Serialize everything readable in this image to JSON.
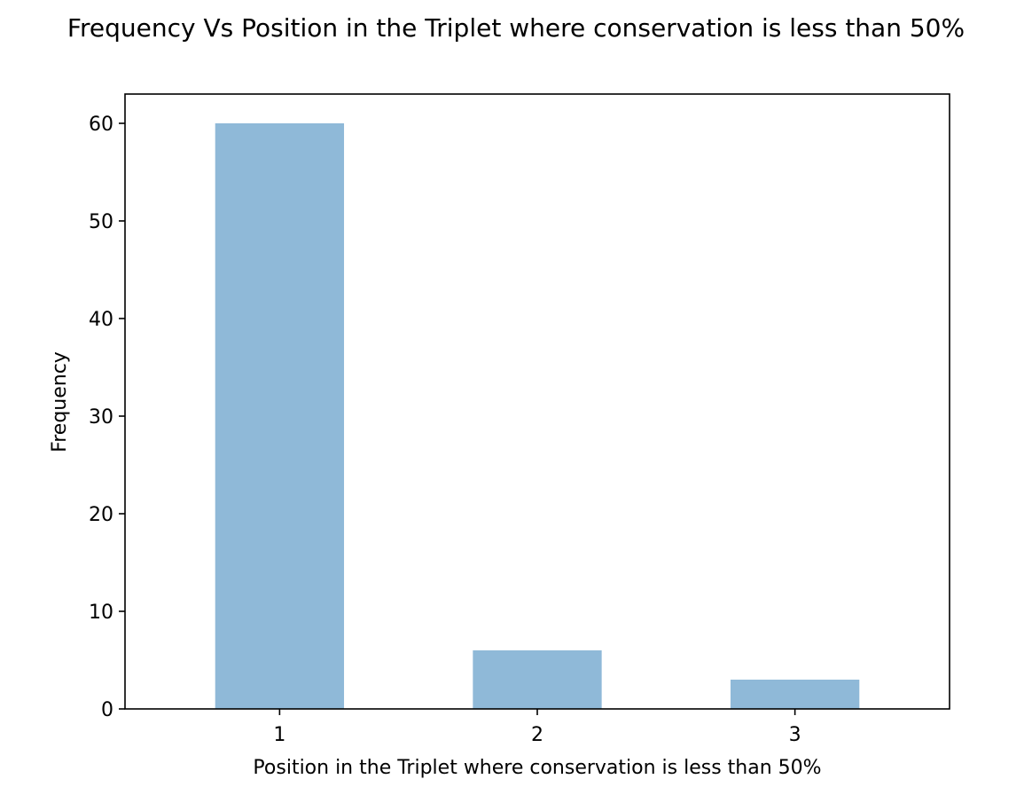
{
  "chart_data": {
    "type": "bar",
    "title": "Frequency Vs Position in the Triplet where conservation is less than 50%",
    "xlabel": "Position in the Triplet where conservation is less than 50%",
    "ylabel": "Frequency",
    "categories": [
      "1",
      "2",
      "3"
    ],
    "values": [
      60,
      6,
      3
    ],
    "ylim": [
      0,
      63
    ],
    "yticks": [
      0,
      10,
      20,
      30,
      40,
      50,
      60
    ],
    "grid": false,
    "bar_color": "#8fb9d8"
  }
}
